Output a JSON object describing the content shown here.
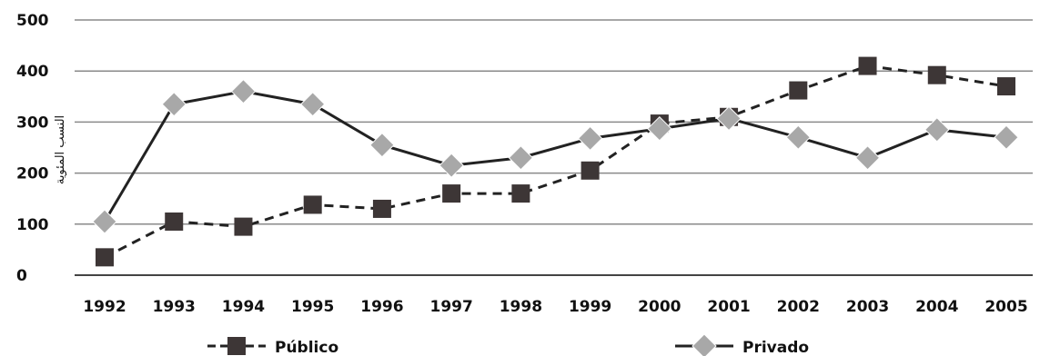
{
  "chart_data": {
    "type": "line",
    "title": "",
    "xlabel": "",
    "ylabel": "النسب المئوية",
    "categories": [
      "1992",
      "1993",
      "1994",
      "1995",
      "1996",
      "1997",
      "1998",
      "1999",
      "2000",
      "2001",
      "2002",
      "2003",
      "2004",
      "2005"
    ],
    "ylim": [
      0,
      500
    ],
    "y_ticks": [
      "0",
      "100",
      "200",
      "300",
      "400",
      "500"
    ],
    "grid": "horizontal",
    "legend_position": "bottom",
    "series": [
      {
        "name": "Público",
        "style": "dashed",
        "marker": "square",
        "color": "#3d3636",
        "values": [
          35,
          105,
          95,
          138,
          130,
          160,
          160,
          205,
          297,
          310,
          362,
          410,
          392,
          370
        ]
      },
      {
        "name": "Privado",
        "style": "solid",
        "marker": "diamond",
        "color": "#a8a8a8",
        "values": [
          105,
          335,
          360,
          335,
          255,
          215,
          230,
          268,
          287,
          307,
          270,
          230,
          285,
          270
        ]
      }
    ]
  }
}
